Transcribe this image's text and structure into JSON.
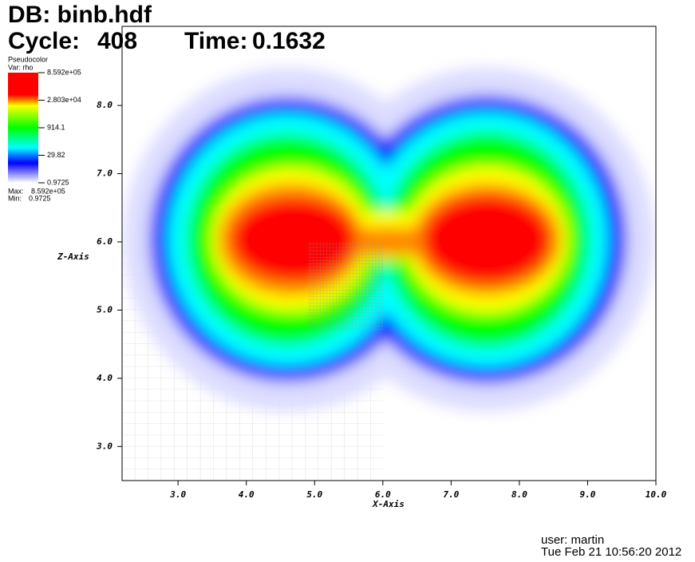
{
  "chart_data": {
    "type": "pseudocolor",
    "title": "DB: binb.hdf",
    "cycle_label": "Cycle:",
    "cycle": 408,
    "time_label": "Time:",
    "time": 0.1632,
    "xlabel": "X-Axis",
    "ylabel": "Z-Axis",
    "xlim": [
      2.18,
      10.0
    ],
    "ylim": [
      2.5,
      9.16
    ],
    "xticks": [
      {
        "value": 3,
        "label": "3.0"
      },
      {
        "value": 4,
        "label": "4.0"
      },
      {
        "value": 5,
        "label": "5.0"
      },
      {
        "value": 6,
        "label": "6.0"
      },
      {
        "value": 7,
        "label": "7.0"
      },
      {
        "value": 8,
        "label": "8.0"
      },
      {
        "value": 9,
        "label": "9.0"
      },
      {
        "value": 10,
        "label": "10.0"
      }
    ],
    "yticks": [
      {
        "value": 3,
        "label": "3.0"
      },
      {
        "value": 4,
        "label": "4.0"
      },
      {
        "value": 5,
        "label": "5.0"
      },
      {
        "value": 6,
        "label": "6.0"
      },
      {
        "value": 7,
        "label": "7.0"
      },
      {
        "value": 8,
        "label": "8.0"
      }
    ],
    "legend": {
      "plot": "Pseudocolor",
      "var": "Var: rho",
      "log_scale": true,
      "ticks": [
        {
          "value": 859200,
          "label": "8.592e+05"
        },
        {
          "value": 28030,
          "label": "2.803e+04"
        },
        914.1,
        29.82,
        0.9725
      ],
      "max_label": "Max:",
      "max": {
        "value": 859200,
        "label": "8.592e+05"
      },
      "min_label": "Min:",
      "min": 0.9725
    },
    "user": "user: martin",
    "date": "Tue Feb 21 10:56:20 2012"
  }
}
